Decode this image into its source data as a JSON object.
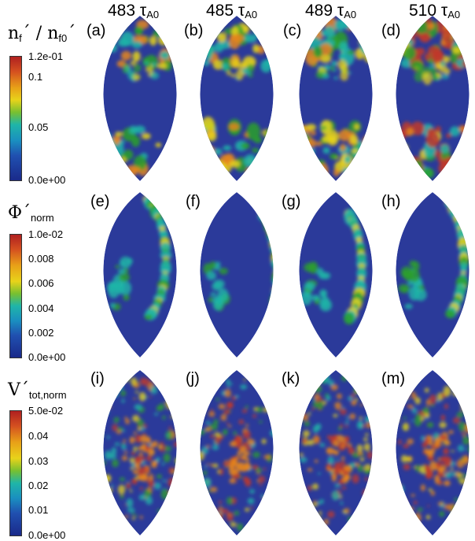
{
  "columns": [
    {
      "value": "483",
      "unit": "τ",
      "sub": "A0"
    },
    {
      "value": "485",
      "unit": "τ",
      "sub": "A0"
    },
    {
      "value": "489",
      "unit": "τ",
      "sub": "A0"
    },
    {
      "value": "510",
      "unit": "τ",
      "sub": "A0"
    }
  ],
  "rows": [
    {
      "quantity": {
        "main": "n",
        "sub1": "f",
        "mid": "´ / n",
        "sub2": "f0",
        "end": "´"
      },
      "panels": [
        "(a)",
        "(b)",
        "(c)",
        "(d)"
      ],
      "colorbar": {
        "max": "1.2e-01",
        "ticks": [
          "0.1",
          "0.05"
        ],
        "min": "0.0e+00"
      }
    },
    {
      "quantity": {
        "main": "Φ´",
        "sub1": "norm",
        "mid": "",
        "sub2": "",
        "end": ""
      },
      "panels": [
        "(e)",
        "(f)",
        "(g)",
        "(h)"
      ],
      "colorbar": {
        "max": "1.0e-02",
        "ticks": [
          "0.008",
          "0.006",
          "0.004",
          "0.002"
        ],
        "min": "0.0e+00"
      }
    },
    {
      "quantity": {
        "main": "V´",
        "sub1": "tot,norm",
        "mid": "",
        "sub2": "",
        "end": ""
      },
      "panels": [
        "(i)",
        "(j)",
        "(k)",
        "(m)"
      ],
      "colorbar": {
        "max": "5.0e-02",
        "ticks": [
          "0.04",
          "0.03",
          "0.02",
          "0.01"
        ],
        "min": "0.0e+00"
      }
    }
  ],
  "colors": {
    "background": "#2b3a9a",
    "cold": "#1a2a8a",
    "teal": "#1fb5a8",
    "green": "#2ca02c",
    "yellow": "#e8d31a",
    "orange": "#e5861c",
    "red": "#c0392b"
  }
}
